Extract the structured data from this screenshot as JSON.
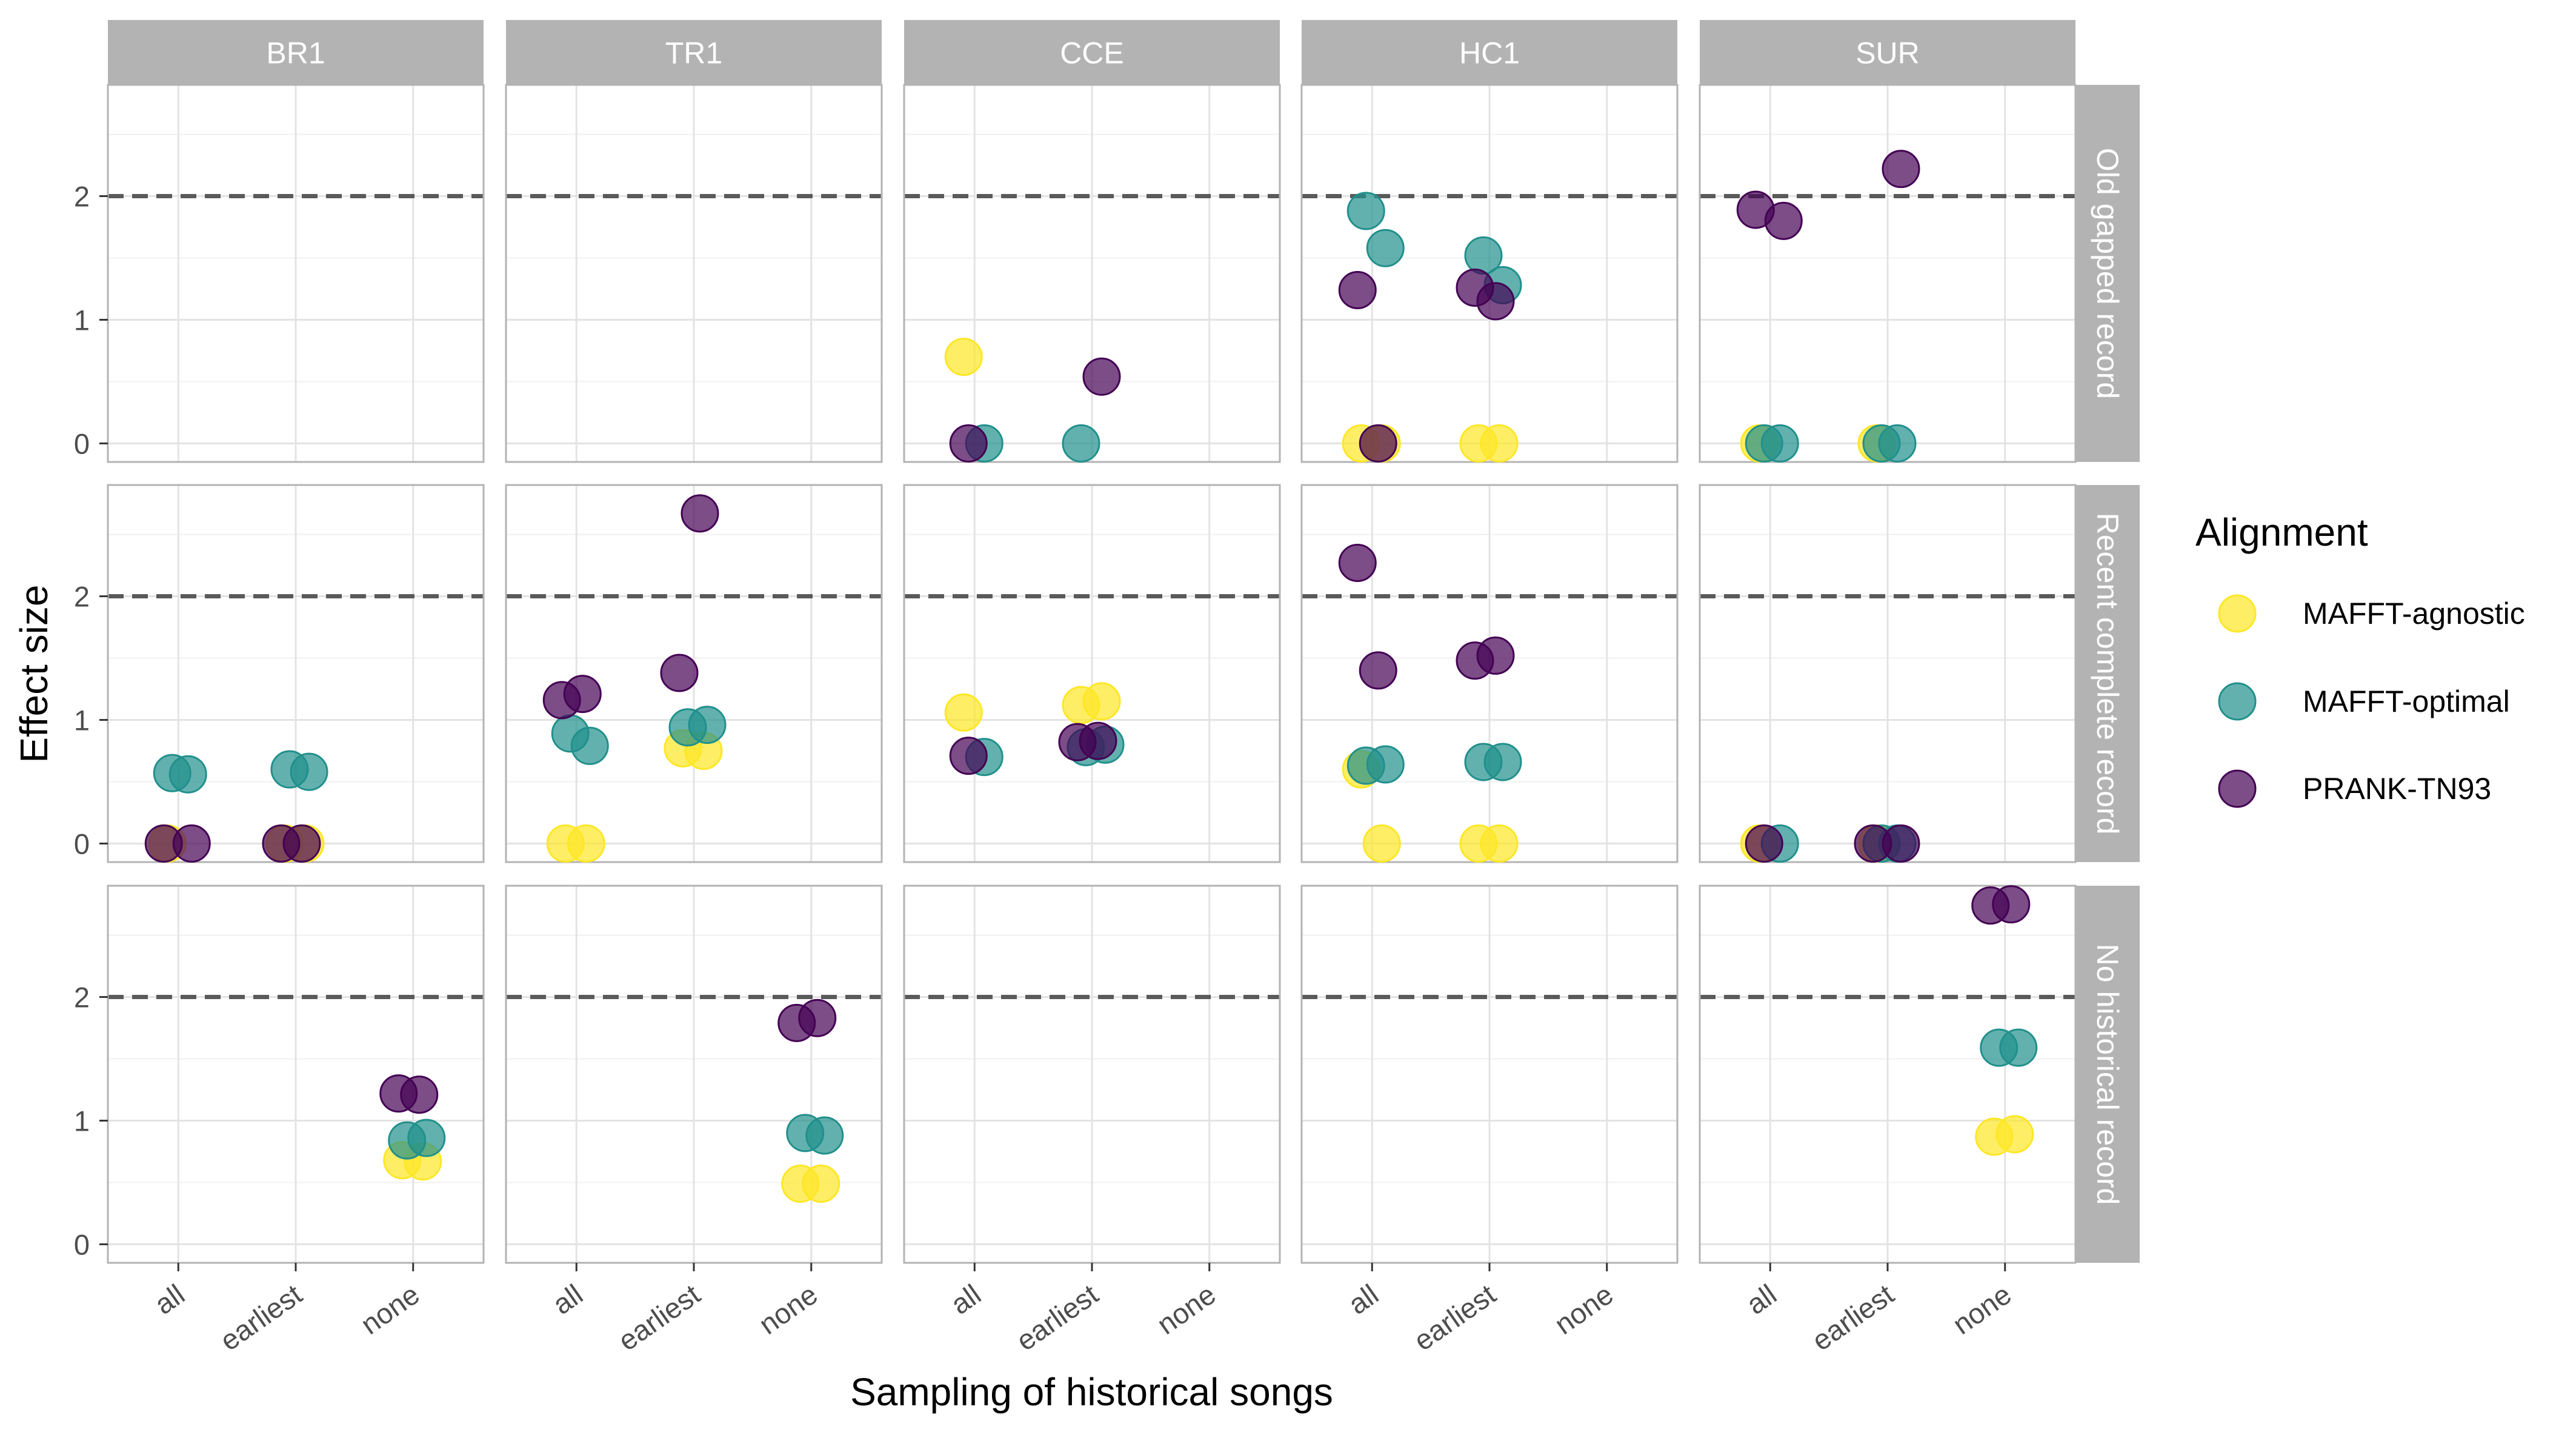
{
  "chart_data": {
    "type": "scatter",
    "xlabel": "Sampling of historical songs",
    "ylabel": "Effect size",
    "x_categories": [
      "all",
      "earliest",
      "none"
    ],
    "y_ticks": [
      0,
      1,
      2
    ],
    "ylim": [
      -0.15,
      2.9
    ],
    "reference_line": 2,
    "grid": true,
    "legend_position": "right",
    "col_facets": [
      "BR1",
      "TR1",
      "CCE",
      "HC1",
      "SUR"
    ],
    "row_facets": [
      "Old gapped record",
      "Recent complete record",
      "No historical record"
    ],
    "legend": {
      "title": "Alignment",
      "entries": [
        {
          "name": "MAFFT-agnostic",
          "color": "#FDE725"
        },
        {
          "name": "MAFFT-optimal",
          "color": "#21908C"
        },
        {
          "name": "PRANK-TN93",
          "color": "#440154"
        }
      ]
    },
    "series": [
      {
        "name": "MAFFT-agnostic",
        "points": [
          {
            "col": "CCE",
            "row": "Old gapped record",
            "x": "all",
            "y": 0.7
          },
          {
            "col": "HC1",
            "row": "Old gapped record",
            "x": "all",
            "y": 0.0
          },
          {
            "col": "HC1",
            "row": "Old gapped record",
            "x": "all",
            "y": 0.0
          },
          {
            "col": "HC1",
            "row": "Old gapped record",
            "x": "earliest",
            "y": 0.0
          },
          {
            "col": "HC1",
            "row": "Old gapped record",
            "x": "earliest",
            "y": 0.0
          },
          {
            "col": "SUR",
            "row": "Old gapped record",
            "x": "all",
            "y": 0.0
          },
          {
            "col": "SUR",
            "row": "Old gapped record",
            "x": "earliest",
            "y": 0.0
          },
          {
            "col": "BR1",
            "row": "Recent complete record",
            "x": "all",
            "y": 0.0
          },
          {
            "col": "BR1",
            "row": "Recent complete record",
            "x": "earliest",
            "y": 0.0
          },
          {
            "col": "BR1",
            "row": "Recent complete record",
            "x": "earliest",
            "y": 0.0
          },
          {
            "col": "TR1",
            "row": "Recent complete record",
            "x": "all",
            "y": 0.0
          },
          {
            "col": "TR1",
            "row": "Recent complete record",
            "x": "all",
            "y": 0.0
          },
          {
            "col": "TR1",
            "row": "Recent complete record",
            "x": "earliest",
            "y": 0.77
          },
          {
            "col": "TR1",
            "row": "Recent complete record",
            "x": "earliest",
            "y": 0.75
          },
          {
            "col": "CCE",
            "row": "Recent complete record",
            "x": "all",
            "y": 1.06
          },
          {
            "col": "CCE",
            "row": "Recent complete record",
            "x": "earliest",
            "y": 1.12
          },
          {
            "col": "CCE",
            "row": "Recent complete record",
            "x": "earliest",
            "y": 1.15
          },
          {
            "col": "HC1",
            "row": "Recent complete record",
            "x": "all",
            "y": 0.6
          },
          {
            "col": "HC1",
            "row": "Recent complete record",
            "x": "all",
            "y": 0.0
          },
          {
            "col": "HC1",
            "row": "Recent complete record",
            "x": "earliest",
            "y": 0.0
          },
          {
            "col": "HC1",
            "row": "Recent complete record",
            "x": "earliest",
            "y": 0.0
          },
          {
            "col": "SUR",
            "row": "Recent complete record",
            "x": "all",
            "y": 0.0
          },
          {
            "col": "SUR",
            "row": "Recent complete record",
            "x": "earliest",
            "y": 0.0
          },
          {
            "col": "BR1",
            "row": "No historical record",
            "x": "none",
            "y": 0.68
          },
          {
            "col": "BR1",
            "row": "No historical record",
            "x": "none",
            "y": 0.67
          },
          {
            "col": "TR1",
            "row": "No historical record",
            "x": "none",
            "y": 0.49
          },
          {
            "col": "TR1",
            "row": "No historical record",
            "x": "none",
            "y": 0.49
          },
          {
            "col": "SUR",
            "row": "No historical record",
            "x": "none",
            "y": 0.87
          },
          {
            "col": "SUR",
            "row": "No historical record",
            "x": "none",
            "y": 0.89
          }
        ]
      },
      {
        "name": "MAFFT-optimal",
        "points": [
          {
            "col": "CCE",
            "row": "Old gapped record",
            "x": "all",
            "y": 0.0
          },
          {
            "col": "CCE",
            "row": "Old gapped record",
            "x": "earliest",
            "y": 0.0
          },
          {
            "col": "HC1",
            "row": "Old gapped record",
            "x": "all",
            "y": 1.88
          },
          {
            "col": "HC1",
            "row": "Old gapped record",
            "x": "all",
            "y": 1.58
          },
          {
            "col": "HC1",
            "row": "Old gapped record",
            "x": "earliest",
            "y": 1.52
          },
          {
            "col": "HC1",
            "row": "Old gapped record",
            "x": "earliest",
            "y": 1.28
          },
          {
            "col": "SUR",
            "row": "Old gapped record",
            "x": "all",
            "y": 0.0
          },
          {
            "col": "SUR",
            "row": "Old gapped record",
            "x": "all",
            "y": 0.0
          },
          {
            "col": "SUR",
            "row": "Old gapped record",
            "x": "earliest",
            "y": 0.0
          },
          {
            "col": "SUR",
            "row": "Old gapped record",
            "x": "earliest",
            "y": 0.0
          },
          {
            "col": "BR1",
            "row": "Recent complete record",
            "x": "all",
            "y": 0.56
          },
          {
            "col": "BR1",
            "row": "Recent complete record",
            "x": "all",
            "y": 0.57
          },
          {
            "col": "BR1",
            "row": "Recent complete record",
            "x": "earliest",
            "y": 0.6
          },
          {
            "col": "BR1",
            "row": "Recent complete record",
            "x": "earliest",
            "y": 0.58
          },
          {
            "col": "TR1",
            "row": "Recent complete record",
            "x": "all",
            "y": 0.89
          },
          {
            "col": "TR1",
            "row": "Recent complete record",
            "x": "all",
            "y": 0.79
          },
          {
            "col": "TR1",
            "row": "Recent complete record",
            "x": "earliest",
            "y": 0.94
          },
          {
            "col": "TR1",
            "row": "Recent complete record",
            "x": "earliest",
            "y": 0.96
          },
          {
            "col": "CCE",
            "row": "Recent complete record",
            "x": "all",
            "y": 0.7
          },
          {
            "col": "CCE",
            "row": "Recent complete record",
            "x": "earliest",
            "y": 0.78
          },
          {
            "col": "CCE",
            "row": "Recent complete record",
            "x": "earliest",
            "y": 0.8
          },
          {
            "col": "HC1",
            "row": "Recent complete record",
            "x": "all",
            "y": 0.63
          },
          {
            "col": "HC1",
            "row": "Recent complete record",
            "x": "all",
            "y": 0.64
          },
          {
            "col": "HC1",
            "row": "Recent complete record",
            "x": "earliest",
            "y": 0.66
          },
          {
            "col": "HC1",
            "row": "Recent complete record",
            "x": "earliest",
            "y": 0.66
          },
          {
            "col": "SUR",
            "row": "Recent complete record",
            "x": "all",
            "y": 0.0
          },
          {
            "col": "SUR",
            "row": "Recent complete record",
            "x": "earliest",
            "y": 0.0
          },
          {
            "col": "SUR",
            "row": "Recent complete record",
            "x": "earliest",
            "y": 0.0
          },
          {
            "col": "BR1",
            "row": "No historical record",
            "x": "none",
            "y": 0.84
          },
          {
            "col": "BR1",
            "row": "No historical record",
            "x": "none",
            "y": 0.86
          },
          {
            "col": "TR1",
            "row": "No historical record",
            "x": "none",
            "y": 0.9
          },
          {
            "col": "TR1",
            "row": "No historical record",
            "x": "none",
            "y": 0.88
          },
          {
            "col": "SUR",
            "row": "No historical record",
            "x": "none",
            "y": 1.59
          },
          {
            "col": "SUR",
            "row": "No historical record",
            "x": "none",
            "y": 1.59
          }
        ]
      },
      {
        "name": "PRANK-TN93",
        "points": [
          {
            "col": "CCE",
            "row": "Old gapped record",
            "x": "all",
            "y": 0.0
          },
          {
            "col": "CCE",
            "row": "Old gapped record",
            "x": "earliest",
            "y": 0.54
          },
          {
            "col": "HC1",
            "row": "Old gapped record",
            "x": "all",
            "y": 1.24
          },
          {
            "col": "HC1",
            "row": "Old gapped record",
            "x": "all",
            "y": 0.0
          },
          {
            "col": "HC1",
            "row": "Old gapped record",
            "x": "earliest",
            "y": 1.26
          },
          {
            "col": "HC1",
            "row": "Old gapped record",
            "x": "earliest",
            "y": 1.15
          },
          {
            "col": "SUR",
            "row": "Old gapped record",
            "x": "all",
            "y": 1.8
          },
          {
            "col": "SUR",
            "row": "Old gapped record",
            "x": "all",
            "y": 1.89
          },
          {
            "col": "SUR",
            "row": "Old gapped record",
            "x": "earliest",
            "y": 2.22
          },
          {
            "col": "BR1",
            "row": "Recent complete record",
            "x": "all",
            "y": 0.0
          },
          {
            "col": "BR1",
            "row": "Recent complete record",
            "x": "all",
            "y": 0.0
          },
          {
            "col": "BR1",
            "row": "Recent complete record",
            "x": "earliest",
            "y": 0.0
          },
          {
            "col": "BR1",
            "row": "Recent complete record",
            "x": "earliest",
            "y": 0.0
          },
          {
            "col": "TR1",
            "row": "Recent complete record",
            "x": "all",
            "y": 1.16
          },
          {
            "col": "TR1",
            "row": "Recent complete record",
            "x": "all",
            "y": 1.21
          },
          {
            "col": "TR1",
            "row": "Recent complete record",
            "x": "earliest",
            "y": 1.38
          },
          {
            "col": "TR1",
            "row": "Recent complete record",
            "x": "earliest",
            "y": 2.67
          },
          {
            "col": "CCE",
            "row": "Recent complete record",
            "x": "all",
            "y": 0.71
          },
          {
            "col": "CCE",
            "row": "Recent complete record",
            "x": "earliest",
            "y": 0.82
          },
          {
            "col": "CCE",
            "row": "Recent complete record",
            "x": "earliest",
            "y": 0.83
          },
          {
            "col": "HC1",
            "row": "Recent complete record",
            "x": "all",
            "y": 2.27
          },
          {
            "col": "HC1",
            "row": "Recent complete record",
            "x": "all",
            "y": 1.4
          },
          {
            "col": "HC1",
            "row": "Recent complete record",
            "x": "earliest",
            "y": 1.48
          },
          {
            "col": "HC1",
            "row": "Recent complete record",
            "x": "earliest",
            "y": 1.52
          },
          {
            "col": "SUR",
            "row": "Recent complete record",
            "x": "all",
            "y": 0.0
          },
          {
            "col": "SUR",
            "row": "Recent complete record",
            "x": "earliest",
            "y": 0.0
          },
          {
            "col": "SUR",
            "row": "Recent complete record",
            "x": "earliest",
            "y": 0.0
          },
          {
            "col": "BR1",
            "row": "No historical record",
            "x": "none",
            "y": 1.22
          },
          {
            "col": "BR1",
            "row": "No historical record",
            "x": "none",
            "y": 1.21
          },
          {
            "col": "TR1",
            "row": "No historical record",
            "x": "none",
            "y": 1.79
          },
          {
            "col": "TR1",
            "row": "No historical record",
            "x": "none",
            "y": 1.83
          },
          {
            "col": "SUR",
            "row": "No historical record",
            "x": "none",
            "y": 2.74
          },
          {
            "col": "SUR",
            "row": "No historical record",
            "x": "none",
            "y": 2.75
          }
        ]
      }
    ]
  }
}
